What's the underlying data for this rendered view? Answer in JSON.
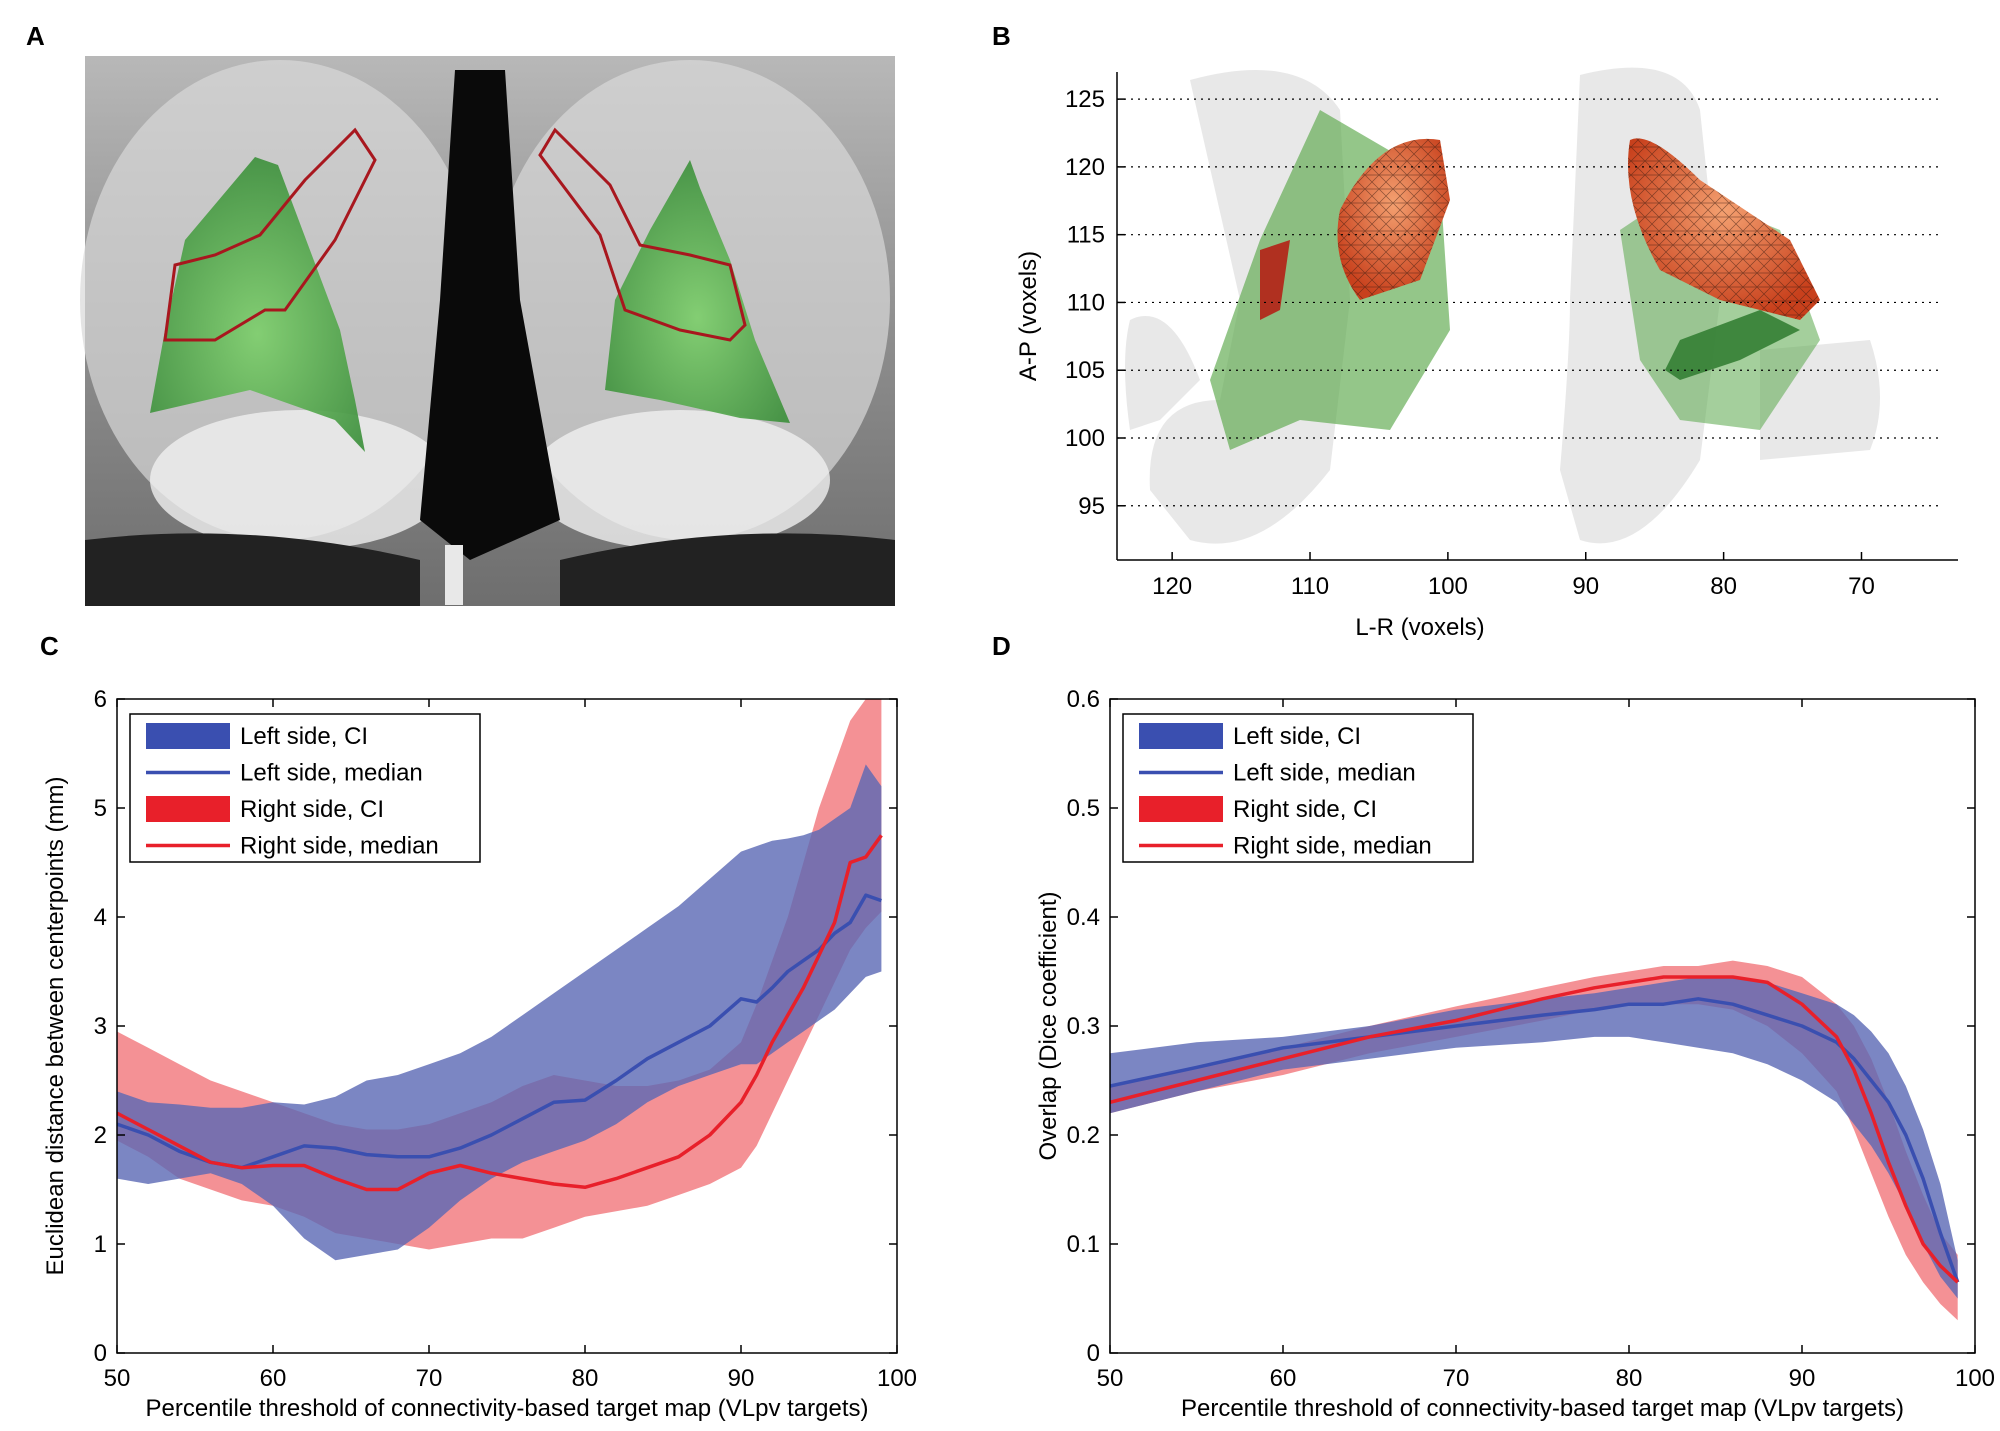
{
  "panels": {
    "a": {
      "label": "A"
    },
    "b": {
      "label": "B",
      "xlabel": "L-R (voxels)",
      "ylabel": "A-P (voxels)",
      "xticks": [
        120,
        110,
        100,
        90,
        80,
        70
      ],
      "yticks": [
        95,
        100,
        105,
        110,
        115,
        120,
        125
      ]
    },
    "c": {
      "label": "C"
    },
    "d": {
      "label": "D"
    }
  },
  "colors": {
    "left_ci": "#5a68b4",
    "left_median": "#3a4fb0",
    "right_ci": "#f06c72",
    "right_median": "#e8202a",
    "overlap": "#7a4a9c"
  },
  "chart_data": [
    {
      "panel": "C",
      "type": "line",
      "xlabel": "Percentile threshold of connectivity-based target map (VLpv targets)",
      "ylabel": "Euclidean distance between centerpoints (mm)",
      "xlim": [
        50,
        100
      ],
      "ylim": [
        0,
        6
      ],
      "xticks": [
        50,
        60,
        70,
        80,
        90,
        100
      ],
      "yticks": [
        0,
        1,
        2,
        3,
        4,
        5,
        6
      ],
      "legend": [
        "Left side, CI",
        "Left side, median",
        "Right side, CI",
        "Right side, median"
      ],
      "x": [
        50,
        52,
        54,
        56,
        58,
        60,
        62,
        64,
        66,
        68,
        70,
        72,
        74,
        76,
        78,
        80,
        82,
        84,
        86,
        88,
        90,
        91,
        92,
        93,
        94,
        95,
        96,
        97,
        98,
        99
      ],
      "series": [
        {
          "name": "Left side, median",
          "values": [
            2.1,
            2.0,
            1.85,
            1.75,
            1.7,
            1.8,
            1.9,
            1.88,
            1.82,
            1.8,
            1.8,
            1.88,
            2.0,
            2.15,
            2.3,
            2.32,
            2.5,
            2.7,
            2.85,
            3.0,
            3.25,
            3.22,
            3.35,
            3.5,
            3.6,
            3.7,
            3.85,
            3.95,
            4.2,
            4.15
          ],
          "ci_low": [
            1.6,
            1.55,
            1.6,
            1.65,
            1.55,
            1.35,
            1.05,
            0.85,
            0.9,
            0.95,
            1.15,
            1.4,
            1.6,
            1.75,
            1.85,
            1.95,
            2.1,
            2.3,
            2.45,
            2.55,
            2.65,
            2.65,
            2.75,
            2.85,
            2.95,
            3.05,
            3.15,
            3.3,
            3.45,
            3.5
          ],
          "ci_high": [
            2.4,
            2.3,
            2.28,
            2.25,
            2.25,
            2.3,
            2.28,
            2.35,
            2.5,
            2.55,
            2.65,
            2.75,
            2.9,
            3.1,
            3.3,
            3.5,
            3.7,
            3.9,
            4.1,
            4.35,
            4.6,
            4.65,
            4.7,
            4.72,
            4.75,
            4.8,
            4.9,
            5.0,
            5.4,
            5.2
          ]
        },
        {
          "name": "Right side, median",
          "values": [
            2.2,
            2.05,
            1.9,
            1.75,
            1.7,
            1.72,
            1.72,
            1.6,
            1.5,
            1.5,
            1.65,
            1.72,
            1.65,
            1.6,
            1.55,
            1.52,
            1.6,
            1.7,
            1.8,
            2.0,
            2.3,
            2.55,
            2.85,
            3.1,
            3.35,
            3.65,
            3.95,
            4.5,
            4.55,
            4.75
          ],
          "ci_low": [
            1.95,
            1.8,
            1.6,
            1.5,
            1.4,
            1.35,
            1.25,
            1.1,
            1.05,
            1.0,
            0.95,
            1.0,
            1.05,
            1.05,
            1.15,
            1.25,
            1.3,
            1.35,
            1.45,
            1.55,
            1.7,
            1.9,
            2.2,
            2.5,
            2.8,
            3.1,
            3.4,
            3.7,
            3.9,
            4.05
          ],
          "ci_high": [
            2.95,
            2.8,
            2.65,
            2.5,
            2.4,
            2.3,
            2.2,
            2.1,
            2.05,
            2.05,
            2.1,
            2.2,
            2.3,
            2.45,
            2.55,
            2.5,
            2.45,
            2.45,
            2.5,
            2.6,
            2.85,
            3.2,
            3.6,
            4.0,
            4.5,
            5.0,
            5.4,
            5.8,
            6.0,
            6.0
          ]
        }
      ]
    },
    {
      "panel": "D",
      "type": "line",
      "xlabel": "Percentile threshold of connectivity-based target map (VLpv targets)",
      "ylabel": "Overlap (Dice coefficient)",
      "xlim": [
        50,
        100
      ],
      "ylim": [
        0,
        0.6
      ],
      "xticks": [
        50,
        60,
        70,
        80,
        90,
        100
      ],
      "yticks": [
        0,
        0.1,
        0.2,
        0.3,
        0.4,
        0.5,
        0.6
      ],
      "legend": [
        "Left side, CI",
        "Left side, median",
        "Right side, CI",
        "Right side, median"
      ],
      "x": [
        50,
        55,
        60,
        65,
        70,
        75,
        78,
        80,
        82,
        84,
        86,
        88,
        90,
        92,
        93,
        94,
        95,
        96,
        97,
        98,
        99
      ],
      "series": [
        {
          "name": "Left side, median",
          "values": [
            0.245,
            0.262,
            0.28,
            0.29,
            0.3,
            0.31,
            0.315,
            0.32,
            0.32,
            0.325,
            0.32,
            0.31,
            0.3,
            0.285,
            0.27,
            0.25,
            0.23,
            0.2,
            0.16,
            0.11,
            0.065
          ],
          "ci_low": [
            0.22,
            0.24,
            0.26,
            0.27,
            0.28,
            0.285,
            0.29,
            0.29,
            0.285,
            0.28,
            0.275,
            0.265,
            0.25,
            0.23,
            0.21,
            0.19,
            0.165,
            0.135,
            0.1,
            0.07,
            0.05
          ],
          "ci_high": [
            0.275,
            0.285,
            0.29,
            0.3,
            0.315,
            0.325,
            0.33,
            0.335,
            0.34,
            0.345,
            0.345,
            0.34,
            0.33,
            0.32,
            0.31,
            0.295,
            0.275,
            0.245,
            0.205,
            0.155,
            0.085
          ]
        },
        {
          "name": "Right side, median",
          "values": [
            0.23,
            0.25,
            0.27,
            0.29,
            0.305,
            0.325,
            0.335,
            0.34,
            0.345,
            0.345,
            0.345,
            0.34,
            0.32,
            0.29,
            0.26,
            0.22,
            0.175,
            0.135,
            0.1,
            0.08,
            0.065
          ],
          "ci_low": [
            0.22,
            0.24,
            0.255,
            0.275,
            0.29,
            0.305,
            0.315,
            0.32,
            0.32,
            0.32,
            0.315,
            0.3,
            0.275,
            0.24,
            0.205,
            0.165,
            0.125,
            0.09,
            0.065,
            0.045,
            0.03
          ],
          "ci_high": [
            0.245,
            0.262,
            0.28,
            0.3,
            0.318,
            0.335,
            0.345,
            0.35,
            0.355,
            0.355,
            0.36,
            0.355,
            0.345,
            0.32,
            0.3,
            0.27,
            0.23,
            0.185,
            0.145,
            0.11,
            0.09
          ]
        }
      ]
    }
  ]
}
